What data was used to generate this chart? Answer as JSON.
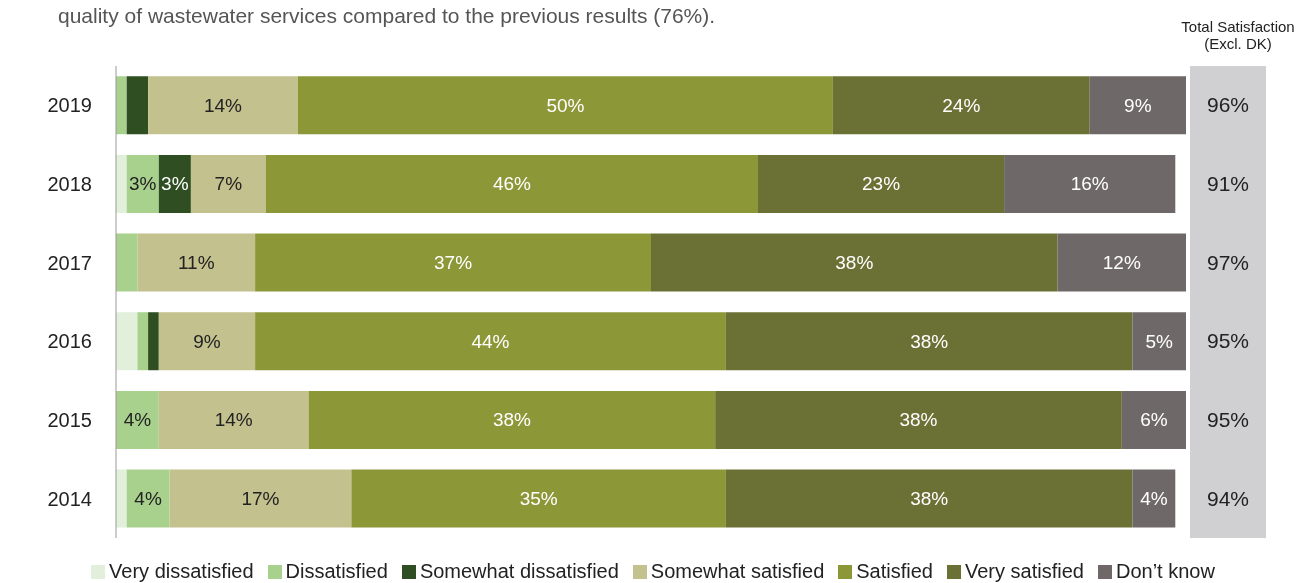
{
  "chart_data": {
    "type": "bar",
    "orientation": "horizontal",
    "stacked": true,
    "title": "quality of wastewater services compared to the previous results (76%).",
    "categories": [
      "2019",
      "2018",
      "2017",
      "2016",
      "2015",
      "2014"
    ],
    "series": [
      {
        "name": "Very dissatisfied",
        "color": "#e2efda",
        "values": [
          0,
          1,
          0,
          2,
          0,
          1
        ],
        "value_labels": [
          null,
          null,
          null,
          null,
          null,
          null
        ]
      },
      {
        "name": "Dissatisfied",
        "color": "#a9d18e",
        "values": [
          1,
          3,
          2,
          1,
          4,
          4
        ],
        "value_labels": [
          null,
          "3%",
          null,
          null,
          "4%",
          "4%"
        ]
      },
      {
        "name": "Somewhat dissatisfied",
        "color": "#2f4f22",
        "values": [
          2,
          3,
          0,
          1,
          0,
          0
        ],
        "value_labels": [
          null,
          "3%",
          null,
          null,
          null,
          null
        ]
      },
      {
        "name": "Somewhat satisfied",
        "color": "#c3c18e",
        "values": [
          14,
          7,
          11,
          9,
          14,
          17
        ],
        "value_labels": [
          "14%",
          "7%",
          "11%",
          "9%",
          "14%",
          "17%"
        ]
      },
      {
        "name": "Satisfied",
        "color": "#8c9838",
        "values": [
          50,
          46,
          37,
          44,
          38,
          35
        ],
        "value_labels": [
          "50%",
          "46%",
          "37%",
          "44%",
          "38%",
          "35%"
        ]
      },
      {
        "name": "Very satisfied",
        "color": "#6b7035",
        "values": [
          24,
          23,
          38,
          38,
          38,
          38
        ],
        "value_labels": [
          "24%",
          "23%",
          "38%",
          "38%",
          "38%",
          "38%"
        ]
      },
      {
        "name": "Don’t know",
        "color": "#6e6868",
        "values": [
          9,
          16,
          12,
          5,
          6,
          4
        ],
        "value_labels": [
          "9%",
          "16%",
          "12%",
          "5%",
          "6%",
          "4%"
        ]
      }
    ],
    "xlim": [
      0,
      100
    ],
    "tick_labels": "y",
    "legend": "bottom",
    "grid": false,
    "annotations": [
      "Total Satisfaction\n(Excl. DK)",
      "96%",
      "91%",
      "97%",
      "95%",
      "95%",
      "94%"
    ]
  }
}
